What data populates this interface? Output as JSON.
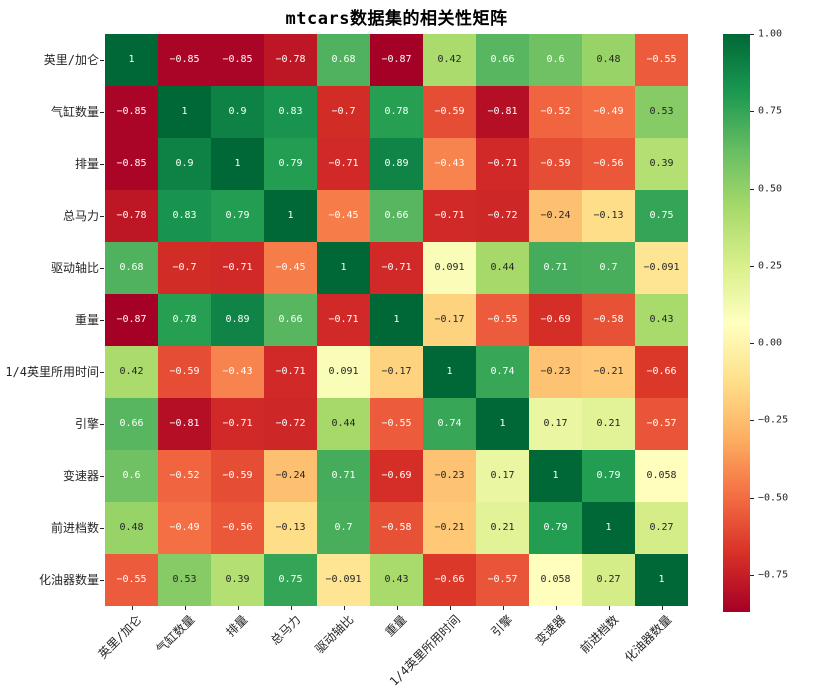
{
  "title": "mtcars数据集的相关性矩阵",
  "chart_data": {
    "type": "heatmap",
    "title": "mtcars数据集的相关性矩阵",
    "labels": [
      "英里/加仑",
      "气缸数量",
      "排量",
      "总马力",
      "驱动轴比",
      "重量",
      "1/4英里所用时间",
      "引擎",
      "变速器",
      "前进档数",
      "化油器数量"
    ],
    "matrix": [
      [
        1,
        -0.85,
        -0.85,
        -0.78,
        0.68,
        -0.87,
        0.42,
        0.66,
        0.6,
        0.48,
        -0.55
      ],
      [
        -0.85,
        1,
        0.9,
        0.83,
        -0.7,
        0.78,
        -0.59,
        -0.81,
        -0.52,
        -0.49,
        0.53
      ],
      [
        -0.85,
        0.9,
        1,
        0.79,
        -0.71,
        0.89,
        -0.43,
        -0.71,
        -0.59,
        -0.56,
        0.39
      ],
      [
        -0.78,
        0.83,
        0.79,
        1,
        -0.45,
        0.66,
        -0.71,
        -0.72,
        -0.24,
        -0.13,
        0.75
      ],
      [
        0.68,
        -0.7,
        -0.71,
        -0.45,
        1,
        -0.71,
        0.091,
        0.44,
        0.71,
        0.7,
        -0.091
      ],
      [
        -0.87,
        0.78,
        0.89,
        0.66,
        -0.71,
        1,
        -0.17,
        -0.55,
        -0.69,
        -0.58,
        0.43
      ],
      [
        0.42,
        -0.59,
        -0.43,
        -0.71,
        0.091,
        -0.17,
        1,
        0.74,
        -0.23,
        -0.21,
        -0.66
      ],
      [
        0.66,
        -0.81,
        -0.71,
        -0.72,
        0.44,
        -0.55,
        0.74,
        1,
        0.17,
        0.21,
        -0.57
      ],
      [
        0.6,
        -0.52,
        -0.59,
        -0.24,
        0.71,
        -0.69,
        -0.23,
        0.17,
        1,
        0.79,
        0.058
      ],
      [
        0.48,
        -0.49,
        -0.56,
        -0.13,
        0.7,
        -0.58,
        -0.21,
        0.21,
        0.79,
        1,
        0.27
      ],
      [
        -0.55,
        0.53,
        0.39,
        0.75,
        -0.091,
        0.43,
        -0.66,
        -0.57,
        0.058,
        0.27,
        1
      ]
    ],
    "vmin": -0.87,
    "vmax": 1.0,
    "colormap": "RdYlGn",
    "colormap_anchors": [
      "#a50026",
      "#d73027",
      "#f46d43",
      "#fdae61",
      "#fee08b",
      "#ffffbf",
      "#d9ef8b",
      "#a6d96a",
      "#66bd63",
      "#1a9850",
      "#006837"
    ],
    "colorbar_tick_values": [
      1.0,
      0.75,
      0.5,
      0.25,
      0.0,
      -0.25,
      -0.5,
      -0.75
    ],
    "colorbar_tick_labels": [
      "1.00",
      "0.75",
      "0.50",
      "0.25",
      "0.00",
      "−0.25",
      "−0.50",
      "−0.75"
    ],
    "annotation_colors": {
      "on_dark": "#ffffff",
      "on_light": "#262626"
    },
    "legend_position": "right-colorbar",
    "grid": false
  }
}
